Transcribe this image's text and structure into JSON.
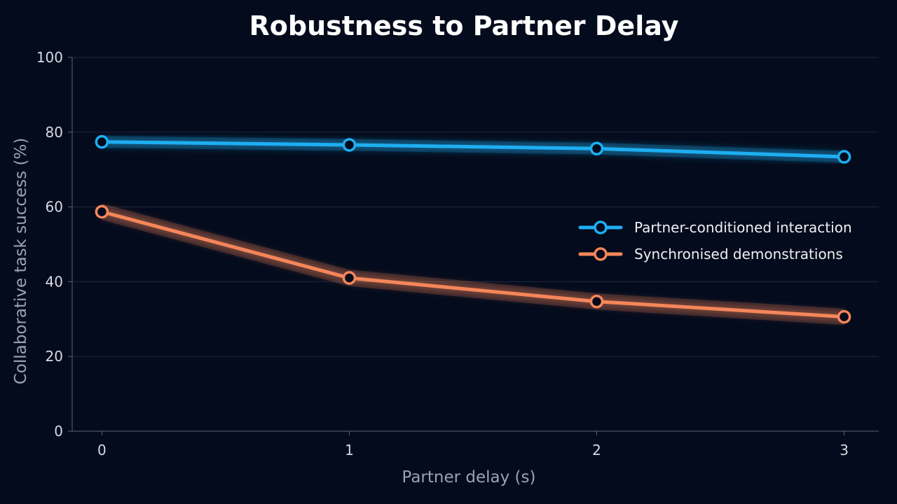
{
  "chart_data": {
    "type": "line",
    "title": "Robustness to Partner Delay",
    "xlabel": "Partner delay (s)",
    "ylabel": "Collaborative task success (%)",
    "x": [
      0,
      1,
      2,
      3
    ],
    "x_tick_labels": [
      "0",
      "1",
      "2",
      "3"
    ],
    "xlim": [
      -0.12,
      3.14
    ],
    "ylim": [
      0,
      100
    ],
    "y_ticks": [
      0,
      20,
      40,
      60,
      80,
      100
    ],
    "y_tick_labels": [
      "0",
      "20",
      "40",
      "60",
      "80",
      "100"
    ],
    "grid": "horizontal",
    "legend_position": "right",
    "series": [
      {
        "name": "Partner-conditioned interaction",
        "values": [
          77.4,
          76.6,
          75.6,
          73.4
        ],
        "color": "#1eaef2",
        "band": 1.6,
        "marker": "hollow-circle"
      },
      {
        "name": "Synchronised demonstrations",
        "values": [
          58.7,
          41.0,
          34.7,
          30.6
        ],
        "color": "#f5865a",
        "band": 2.2,
        "marker": "hollow-circle"
      }
    ]
  }
}
